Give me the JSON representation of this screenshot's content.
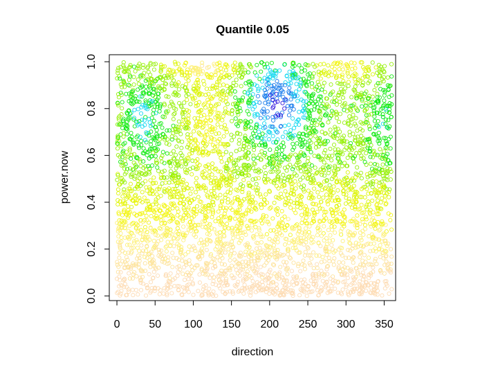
{
  "chart_data": {
    "type": "scatter",
    "title": "Quantile 0.05",
    "xlabel": "direction",
    "ylabel": "power.now",
    "xlim": [
      -10,
      365
    ],
    "ylim": [
      -0.02,
      1.03
    ],
    "x_ticks": [
      0,
      50,
      100,
      150,
      200,
      250,
      300,
      350
    ],
    "x_tick_labels": [
      "0",
      "50",
      "100",
      "150",
      "200",
      "250",
      "300",
      "350"
    ],
    "y_ticks": [
      0.0,
      0.2,
      0.4,
      0.6,
      0.8,
      1.0
    ],
    "y_tick_labels": [
      "0.0",
      "0.2",
      "0.4",
      "0.6",
      "0.8",
      "1.0"
    ],
    "x_range": [
      0,
      360
    ],
    "y_range": [
      0,
      1
    ],
    "marker": "open-circle",
    "grid": false,
    "colors": {
      "band_0": "#fddcb4",
      "band_1": "#fde39b",
      "band_2": "#fdf07a",
      "band_3": "#f3f51a",
      "band_4": "#ddf50a",
      "band_5": "#97f00a",
      "band_6": "#14ea14",
      "band_7": "#14d8f0",
      "band_8": "#1e7fec",
      "band_9": "#3214dc",
      "band_10": "#8a14dc"
    }
  }
}
